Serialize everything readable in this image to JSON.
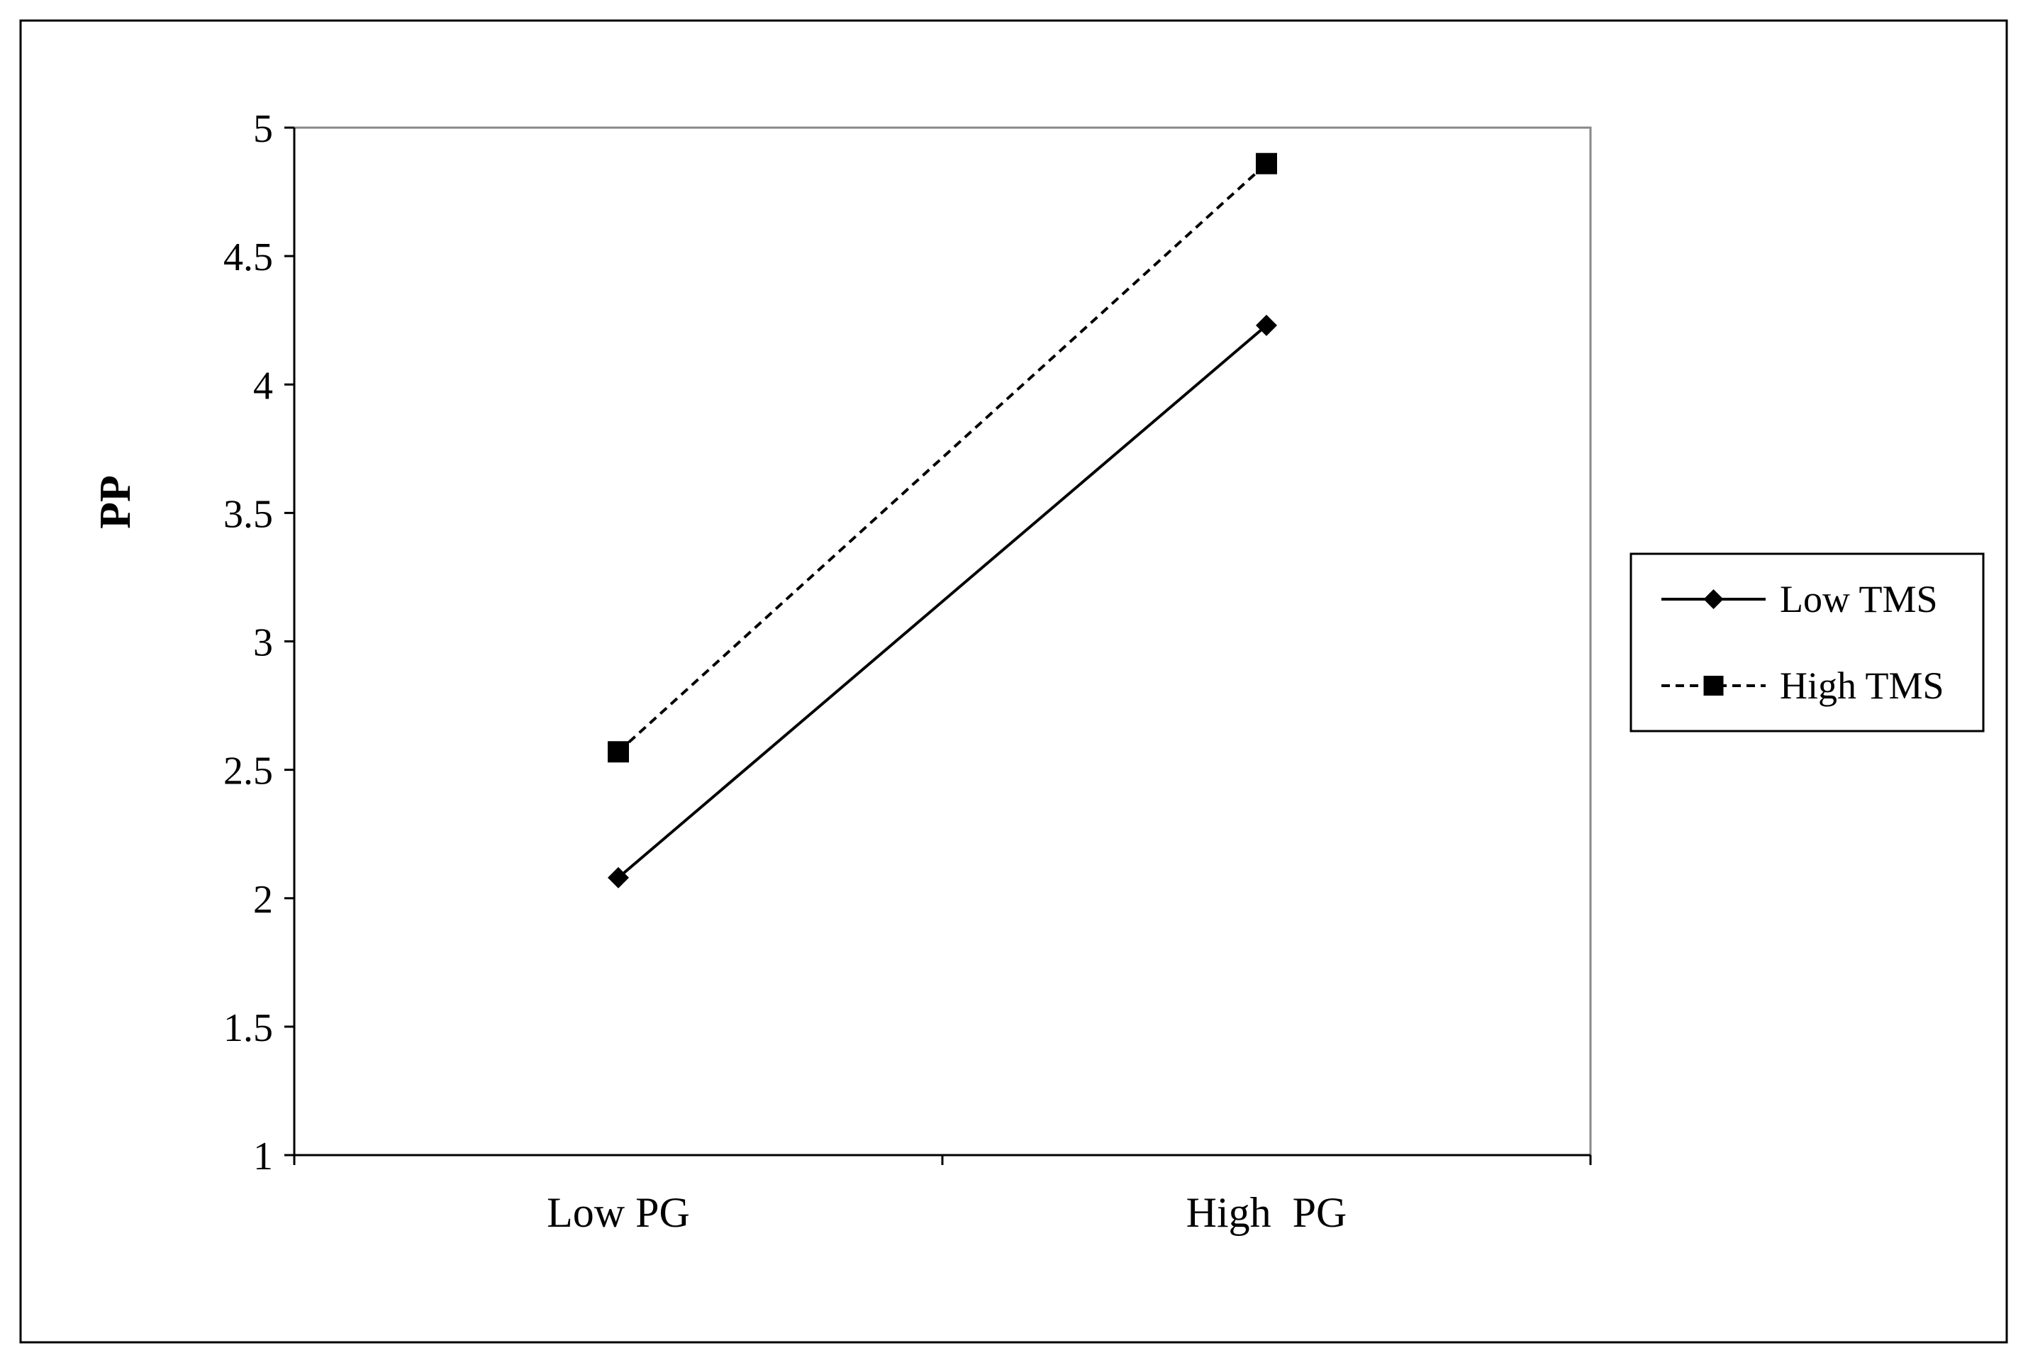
{
  "chart_data": {
    "type": "line",
    "title": "",
    "xlabel": "",
    "ylabel": "PP",
    "categories": [
      "Low PG",
      "High  PG"
    ],
    "ylim": [
      1,
      5
    ],
    "yticks": [
      "1",
      "1.5",
      "2",
      "2.5",
      "3",
      "3.5",
      "4",
      "4.5",
      "5"
    ],
    "grid": false,
    "legend_position": "right",
    "series": [
      {
        "name": "Low TMS",
        "values": [
          2.08,
          4.23
        ],
        "marker": "diamond",
        "line_style": "solid",
        "color": "#000000"
      },
      {
        "name": "High TMS",
        "values": [
          2.57,
          4.86
        ],
        "marker": "square",
        "line_style": "dashed",
        "color": "#000000"
      }
    ]
  }
}
